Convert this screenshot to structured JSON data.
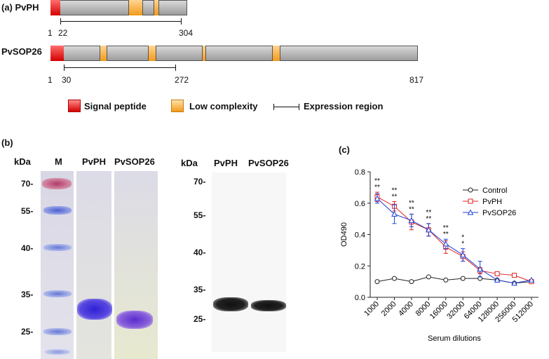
{
  "panel_a": {
    "label": "(a)",
    "proteins": [
      {
        "name": "PvPH",
        "start": "1",
        "expr_start": "22",
        "expr_end": "304"
      },
      {
        "name": "PvSOP26",
        "start": "1",
        "expr_start": "30",
        "expr_end": "272",
        "length": "817"
      }
    ],
    "legend": {
      "signal": "Signal peptide",
      "low": "Low complexity",
      "expr": "Expression region"
    },
    "colors": {
      "signal": "#e52020",
      "low": "#f5a623",
      "bar": "#bdbdbd"
    }
  },
  "panel_b": {
    "label": "(b)",
    "kda": "kDa",
    "marker_lane": "M",
    "lanes": [
      "PvPH",
      "PvSOP26"
    ],
    "mw": [
      "70-",
      "55-",
      "40-",
      "35-",
      "25-"
    ],
    "wb_kda": "kDa",
    "wb_lanes": [
      "PvPH",
      "PvSOP26"
    ],
    "wb_mw": [
      "70-",
      "55-",
      "40-",
      "35-",
      "25-"
    ]
  },
  "panel_c": {
    "label": "(c)",
    "ylabel": "OD490",
    "xlabel": "Serum dilutions"
  },
  "chart_data": {
    "type": "line",
    "categories": [
      "1000",
      "2000",
      "4000",
      "8000",
      "16000",
      "32000",
      "64000",
      "128000",
      "256000",
      "512000"
    ],
    "ylim": [
      0,
      0.8
    ],
    "yticks": [
      "0.0",
      "0.2",
      "0.4",
      "0.6",
      "0.8"
    ],
    "legend_position": "top-right",
    "series": [
      {
        "name": "Control",
        "color": "#222222",
        "marker": "circle",
        "values": [
          0.1,
          0.12,
          0.1,
          0.13,
          0.11,
          0.12,
          0.12,
          0.11,
          0.09,
          0.1
        ],
        "errors": [
          0,
          0,
          0,
          0,
          0,
          0,
          0,
          0,
          0,
          0
        ]
      },
      {
        "name": "PvPH",
        "color": "#e02020",
        "marker": "square",
        "values": [
          0.64,
          0.58,
          0.48,
          0.43,
          0.32,
          0.26,
          0.17,
          0.15,
          0.14,
          0.1
        ],
        "errors": [
          0.03,
          0.03,
          0.05,
          0.04,
          0.04,
          0.03,
          0.02,
          0,
          0,
          0
        ]
      },
      {
        "name": "PvSOP26",
        "color": "#1f3fd6",
        "marker": "triangle",
        "values": [
          0.63,
          0.53,
          0.49,
          0.43,
          0.34,
          0.27,
          0.18,
          0.11,
          0.09,
          0.11
        ],
        "errors": [
          0.03,
          0.06,
          0.04,
          0.04,
          0.03,
          0.04,
          0.05,
          0,
          0,
          0
        ]
      }
    ],
    "significance": [
      "**\n**",
      "**\n**",
      "**\n**",
      "**\n**",
      "**\n**",
      "*\n*",
      "",
      "",
      "",
      ""
    ]
  }
}
